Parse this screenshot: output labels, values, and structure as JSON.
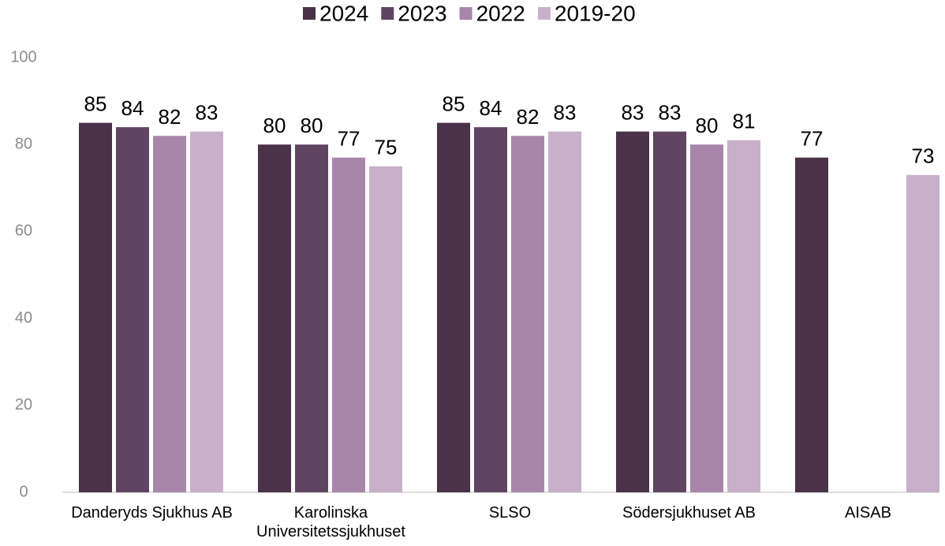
{
  "chart_data": {
    "type": "bar",
    "categories": [
      "Danderyds Sjukhus AB",
      "Karolinska Universitetssjukhuset",
      "SLSO",
      "Södersjukhuset AB",
      "AISAB"
    ],
    "series": [
      {
        "name": "2024",
        "color": "#4a3248",
        "values": [
          85,
          80,
          85,
          83,
          77
        ]
      },
      {
        "name": "2023",
        "color": "#5f4562",
        "values": [
          84,
          80,
          84,
          83,
          null
        ]
      },
      {
        "name": "2022",
        "color": "#a886aa",
        "values": [
          82,
          77,
          82,
          80,
          null
        ]
      },
      {
        "name": "2019-20",
        "color": "#c8b0c9",
        "values": [
          83,
          75,
          83,
          81,
          73
        ]
      }
    ],
    "ylim": [
      0,
      100
    ],
    "yticks": [
      0,
      20,
      40,
      60,
      80,
      100
    ],
    "grid": false,
    "legend": "top"
  }
}
